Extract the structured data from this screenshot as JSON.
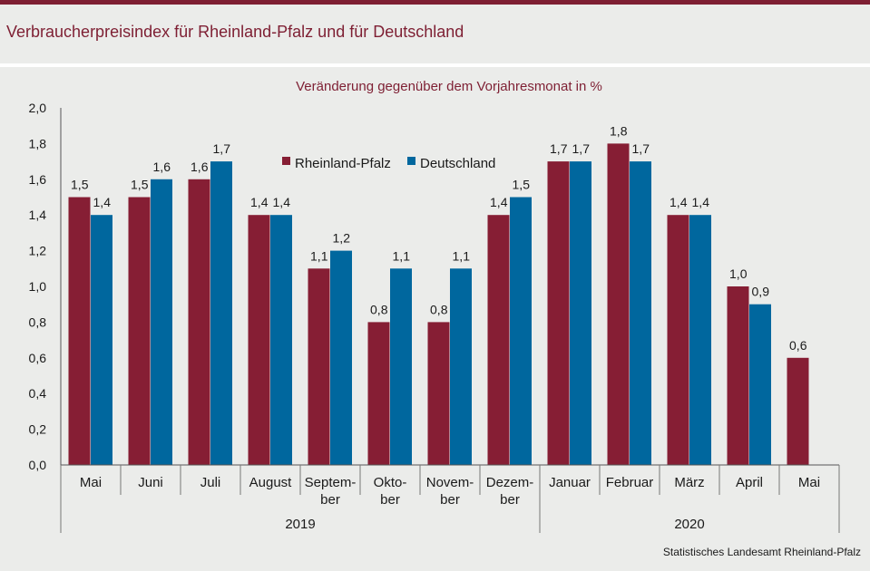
{
  "page": {
    "title": "Verbraucherpreisindex für Rheinland-Pfalz und für Deutschland",
    "source": "Statistisches Landesamt  Rheinland-Pfalz"
  },
  "chart_data": {
    "type": "bar",
    "subtitle": "Veränderung gegenüber dem Vorjahresmonat in %",
    "categories": [
      [
        "Mai"
      ],
      [
        "Juni"
      ],
      [
        "Juli"
      ],
      [
        "August"
      ],
      [
        "Septem-",
        "ber"
      ],
      [
        "Okto-",
        "ber"
      ],
      [
        "Novem-",
        "ber"
      ],
      [
        "Dezem-",
        "ber"
      ],
      [
        "Januar"
      ],
      [
        "Februar"
      ],
      [
        "März"
      ],
      [
        "April"
      ],
      [
        "Mai"
      ]
    ],
    "year_groups": [
      {
        "label": "2019",
        "count": 8
      },
      {
        "label": "2020",
        "count": 5
      }
    ],
    "series": [
      {
        "name": "Rheinland-Pfalz",
        "color": "#861e34",
        "values": [
          1.5,
          1.5,
          1.6,
          1.4,
          1.1,
          0.8,
          0.8,
          1.4,
          1.7,
          1.8,
          1.4,
          1.0,
          0.6
        ]
      },
      {
        "name": "Deutschland",
        "color": "#00679e",
        "values": [
          1.4,
          1.6,
          1.7,
          1.4,
          1.2,
          1.1,
          1.1,
          1.5,
          1.7,
          1.7,
          1.4,
          0.9,
          null
        ]
      }
    ],
    "ylim": [
      0,
      2.0
    ],
    "yticks": [
      0,
      0.2,
      0.4,
      0.6,
      0.8,
      1.0,
      1.2,
      1.4,
      1.6,
      1.8,
      2.0
    ],
    "decimal_separator": ",",
    "legend_position": "top-center",
    "grid": false
  }
}
